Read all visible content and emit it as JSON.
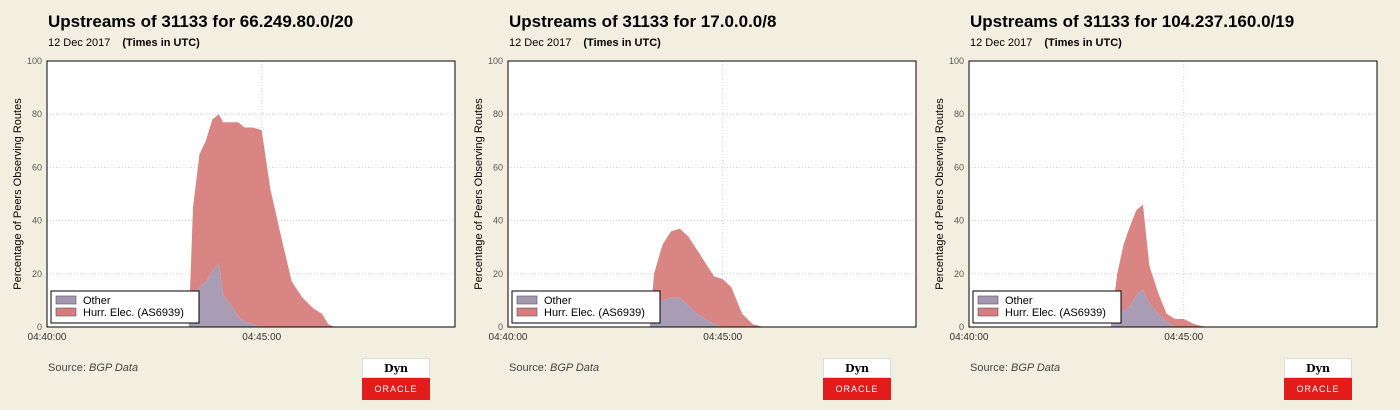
{
  "panels": [
    {
      "title": "Upstreams of 31133 for 66.249.80.0/20",
      "date": "12 Dec 2017",
      "times_note": "(Times in UTC)",
      "source_label": "Source:",
      "source_value": "BGP Data",
      "logo_top": "Dyn",
      "logo_bottom": "ORACLE"
    },
    {
      "title": "Upstreams of 31133 for 17.0.0.0/8",
      "date": "12 Dec 2017",
      "times_note": "(Times in UTC)",
      "source_label": "Source:",
      "source_value": "BGP Data",
      "logo_top": "Dyn",
      "logo_bottom": "ORACLE"
    },
    {
      "title": "Upstreams of 31133 for 104.237.160.0/19",
      "date": "12 Dec 2017",
      "times_note": "(Times in UTC)",
      "source_label": "Source:",
      "source_value": "BGP Data",
      "logo_top": "Dyn",
      "logo_bottom": "ORACLE"
    }
  ],
  "chart_data": [
    {
      "type": "area",
      "stacked": true,
      "title": "Upstreams of 31133 for 66.249.80.0/20",
      "ylabel": "Percentage of Peers Observing Routes",
      "xlabel": "",
      "xlim_minutes": [
        0,
        9.5
      ],
      "ylim": [
        0,
        100
      ],
      "x_ticks": [
        {
          "x": 0,
          "label": "04:40:00"
        },
        {
          "x": 5,
          "label": "04:45:00"
        }
      ],
      "y_ticks": [
        0,
        20,
        40,
        60,
        80,
        100
      ],
      "grid": true,
      "legend_position": "bottom-left",
      "series": [
        {
          "name": "Other",
          "color": "#a398b0",
          "x": [
            3.3,
            3.4,
            3.55,
            3.7,
            3.85,
            4.0,
            4.1,
            4.25,
            4.45,
            4.6,
            4.8,
            5.0
          ],
          "values": [
            0,
            12,
            15,
            17,
            21,
            24,
            12,
            9,
            4,
            2,
            1,
            0
          ]
        },
        {
          "name": "Hurr. Elec. (AS6939)",
          "color": "#d77e7c",
          "x": [
            3.3,
            3.4,
            3.55,
            3.7,
            3.85,
            4.0,
            4.1,
            4.25,
            4.45,
            4.6,
            4.8,
            5.0,
            5.2,
            5.45,
            5.7,
            5.95,
            6.2,
            6.4,
            6.55,
            6.7,
            7.0
          ],
          "values": [
            0,
            33,
            50,
            53,
            57,
            56,
            65,
            68,
            73,
            73,
            74,
            74,
            52,
            34,
            17,
            11,
            7,
            5,
            1,
            0,
            0
          ]
        }
      ]
    },
    {
      "type": "area",
      "stacked": true,
      "title": "Upstreams of 31133 for 17.0.0.0/8",
      "ylabel": "Percentage of Peers Observing Routes",
      "xlabel": "",
      "xlim_minutes": [
        0,
        9.5
      ],
      "ylim": [
        0,
        100
      ],
      "x_ticks": [
        {
          "x": 0,
          "label": "04:40:00"
        },
        {
          "x": 5,
          "label": "04:45:00"
        }
      ],
      "y_ticks": [
        0,
        20,
        40,
        60,
        80,
        100
      ],
      "grid": true,
      "legend_position": "bottom-left",
      "series": [
        {
          "name": "Other",
          "color": "#a398b0",
          "x": [
            3.3,
            3.4,
            3.6,
            3.8,
            4.0,
            4.2,
            4.4,
            4.6,
            4.8,
            5.0,
            5.2
          ],
          "values": [
            0,
            8,
            10,
            11,
            11,
            8,
            5,
            3,
            1,
            0,
            0
          ]
        },
        {
          "name": "Hurr. Elec. (AS6939)",
          "color": "#d77e7c",
          "x": [
            3.3,
            3.4,
            3.6,
            3.8,
            4.0,
            4.2,
            4.4,
            4.6,
            4.8,
            5.0,
            5.2,
            5.45,
            5.7,
            5.95
          ],
          "values": [
            0,
            12,
            21,
            25,
            26,
            26,
            24,
            21,
            18,
            18,
            15,
            5,
            1,
            0
          ]
        }
      ]
    },
    {
      "type": "area",
      "stacked": true,
      "title": "Upstreams of 31133 for 104.237.160.0/19",
      "ylabel": "Percentage of Peers Observing Routes",
      "xlabel": "",
      "xlim_minutes": [
        0,
        9.5
      ],
      "ylim": [
        0,
        100
      ],
      "x_ticks": [
        {
          "x": 0,
          "label": "04:40:00"
        },
        {
          "x": 5,
          "label": "04:45:00"
        }
      ],
      "y_ticks": [
        0,
        20,
        40,
        60,
        80,
        100
      ],
      "grid": true,
      "legend_position": "bottom-left",
      "series": [
        {
          "name": "Other",
          "color": "#a398b0",
          "x": [
            3.3,
            3.45,
            3.6,
            3.75,
            3.9,
            4.05,
            4.2,
            4.4,
            4.6,
            4.8,
            5.0
          ],
          "values": [
            0,
            4,
            6,
            8,
            12,
            14,
            9,
            5,
            2,
            0,
            0
          ]
        },
        {
          "name": "Hurr. Elec. (AS6939)",
          "color": "#d77e7c",
          "x": [
            3.3,
            3.45,
            3.6,
            3.75,
            3.9,
            4.05,
            4.2,
            4.4,
            4.6,
            4.8,
            5.0,
            5.25,
            5.5
          ],
          "values": [
            0,
            16,
            25,
            30,
            32,
            32,
            14,
            8,
            3,
            3,
            3,
            1,
            0
          ]
        }
      ]
    }
  ]
}
